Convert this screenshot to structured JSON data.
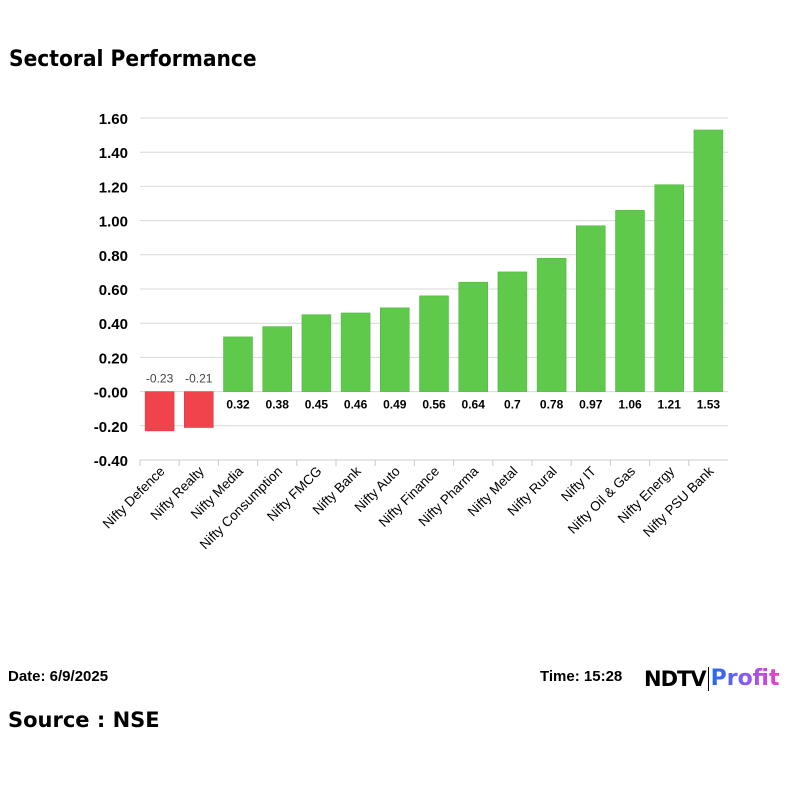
{
  "chart_data": {
    "type": "bar",
    "title": "Sectoral Performance",
    "categories": [
      "Nifty Defence",
      "Nifty Realty",
      "Nifty Media",
      "Nifty Consumption",
      "Nifty FMCG",
      "Nifty Bank",
      "Nifty Auto",
      "Nifty Finance",
      "Nifty Pharma",
      "Nifty Metal",
      "Nifty Rural",
      "Nifty IT",
      "Nifty Oil & Gas",
      "Nifty Energy",
      "Nifty PSU Bank"
    ],
    "values": [
      -0.23,
      -0.21,
      0.32,
      0.38,
      0.45,
      0.46,
      0.49,
      0.56,
      0.64,
      0.7,
      0.78,
      0.97,
      1.06,
      1.21,
      1.53
    ],
    "value_labels": [
      "-0.23",
      "-0.21",
      "0.32",
      "0.38",
      "0.45",
      "0.46",
      "0.49",
      "0.56",
      "0.64",
      "0.7",
      "0.78",
      "0.97",
      "1.06",
      "1.21",
      "1.53"
    ],
    "yticks": [
      "1.60",
      "1.40",
      "1.20",
      "1.00",
      "0.80",
      "0.60",
      "0.40",
      "0.20",
      "-0.00",
      "-0.20",
      "-0.40"
    ],
    "ylim": [
      -0.4,
      1.6
    ],
    "xlabel": "",
    "ylabel": "",
    "grid": true,
    "colors": {
      "positive": "#5ec94a",
      "negative": "#f0434b"
    }
  },
  "footer": {
    "date": "Date: 6/9/2025",
    "time": "Time: 15:28",
    "source": "Source : NSE",
    "logo_ndtv": "NDTV",
    "logo_profit": "Profit"
  }
}
